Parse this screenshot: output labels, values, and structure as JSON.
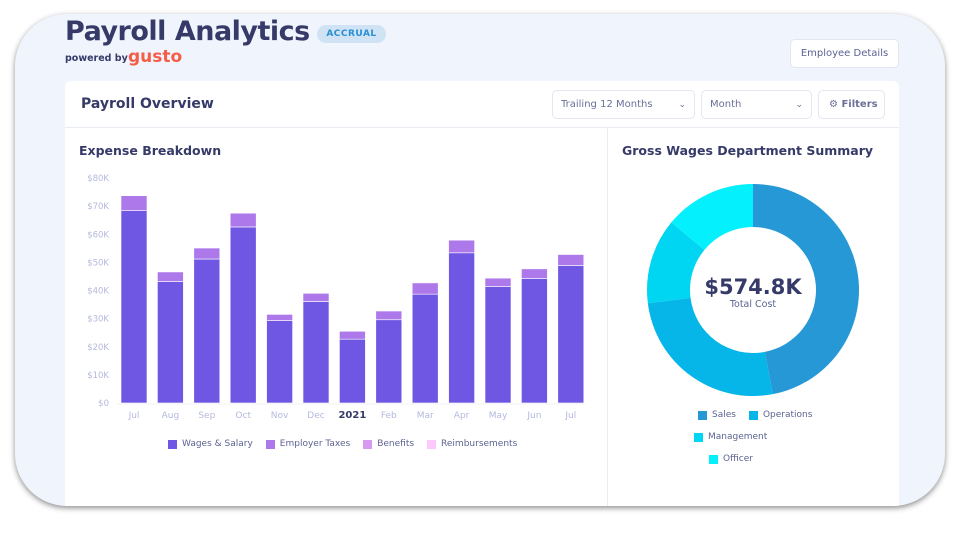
{
  "header": {
    "title": "Payroll Analytics",
    "badge": "ACCRUAL",
    "powered_by": "powered by",
    "brand": "gusto",
    "employee_details": "Employee Details"
  },
  "overview": {
    "title": "Payroll Overview",
    "period_select": "Trailing 12 Months",
    "granularity_select": "Month",
    "filters": "Filters"
  },
  "expense": {
    "title": "Expense Breakdown"
  },
  "department": {
    "title": "Gross Wages Department Summary",
    "total": "$574.8K",
    "total_label": "Total Cost"
  },
  "colors": {
    "wages": "#7057e3",
    "taxes": "#ad78ea",
    "benefits": "#d89af0",
    "reimbursements": "#fdc8fb",
    "sales": "#2698d6",
    "operations": "#06b6e8",
    "management": "#00d6f2",
    "officer": "#05f0fd"
  },
  "chart_data": [
    {
      "type": "bar",
      "stacked": true,
      "title": "Expense Breakdown",
      "categories": [
        "Jul",
        "Aug",
        "Sep",
        "Oct",
        "Nov",
        "Dec",
        "2021",
        "Feb",
        "Mar",
        "Apr",
        "May",
        "Jun",
        "Jul"
      ],
      "yticks": [
        "$0",
        "$10K",
        "$20K",
        "$30K",
        "$40K",
        "$50K",
        "$60K",
        "$70K",
        "$80K"
      ],
      "ylim": [
        0,
        80
      ],
      "legend": "bottom",
      "series": [
        {
          "name": "Wages & Salary",
          "values": [
            68.4,
            43.2,
            51.2,
            62.6,
            29.3,
            36.1,
            22.7,
            29.6,
            38.7,
            53.4,
            41.4,
            44.3,
            48.9
          ]
        },
        {
          "name": "Employer Taxes",
          "values": [
            5.3,
            3.4,
            3.9,
            4.9,
            2.2,
            2.9,
            2.8,
            3.1,
            4.0,
            4.5,
            3.0,
            3.4,
            3.9
          ]
        },
        {
          "name": "Benefits",
          "values": [
            0,
            0,
            0,
            0,
            0,
            0,
            0,
            0,
            0,
            0,
            0,
            0,
            0
          ]
        },
        {
          "name": "Reimbursements",
          "values": [
            0,
            0,
            0,
            0,
            0,
            0,
            0,
            0,
            0,
            0,
            0,
            0,
            0
          ]
        }
      ]
    },
    {
      "type": "pie",
      "donut": true,
      "title": "Gross Wages Department Summary",
      "legend": "bottom",
      "categories": [
        "Sales",
        "Operations",
        "Management",
        "Officer"
      ],
      "values": [
        47,
        26,
        13,
        14
      ]
    }
  ]
}
